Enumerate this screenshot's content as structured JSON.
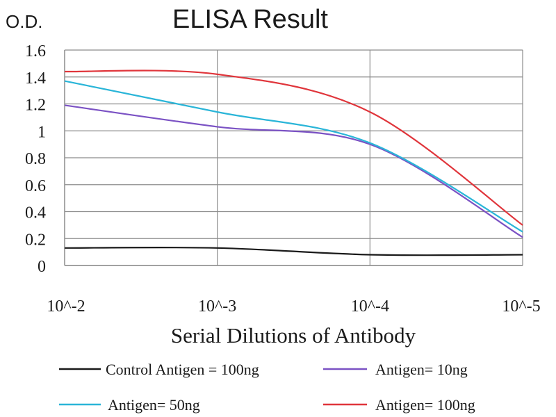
{
  "chart_data": {
    "type": "line",
    "title": "ELISA Result",
    "ylabel": "O.D.",
    "xlabel": "Serial Dilutions of Antibody",
    "x_scale": "log",
    "x": [
      0.01,
      0.001,
      0.0001,
      1e-05
    ],
    "x_tick_labels": [
      "10^-2",
      "10^-3",
      "10^-4",
      "10^-5"
    ],
    "ylim": [
      0,
      1.6
    ],
    "y_ticks": [
      0,
      0.2,
      0.4,
      0.6,
      0.8,
      1,
      1.2,
      1.4,
      1.6
    ],
    "y_tick_labels": [
      "0",
      "0.2",
      "0.4",
      "0.6",
      "0.8",
      "1",
      "1.2",
      "1.4",
      "1.6"
    ],
    "grid": true,
    "legend_position": "bottom",
    "series": [
      {
        "name": "Control Antigen = 100ng",
        "color": "#1a1a1a",
        "values": [
          0.13,
          0.13,
          0.08,
          0.08
        ]
      },
      {
        "name": "Antigen= 10ng",
        "color": "#7b52c4",
        "values": [
          1.19,
          1.03,
          0.9,
          0.21
        ]
      },
      {
        "name": "Antigen= 50ng",
        "color": "#2ab5d8",
        "values": [
          1.37,
          1.14,
          0.91,
          0.25
        ]
      },
      {
        "name": "Antigen= 100ng",
        "color": "#e0353b",
        "values": [
          1.44,
          1.42,
          1.14,
          0.3
        ]
      }
    ]
  }
}
